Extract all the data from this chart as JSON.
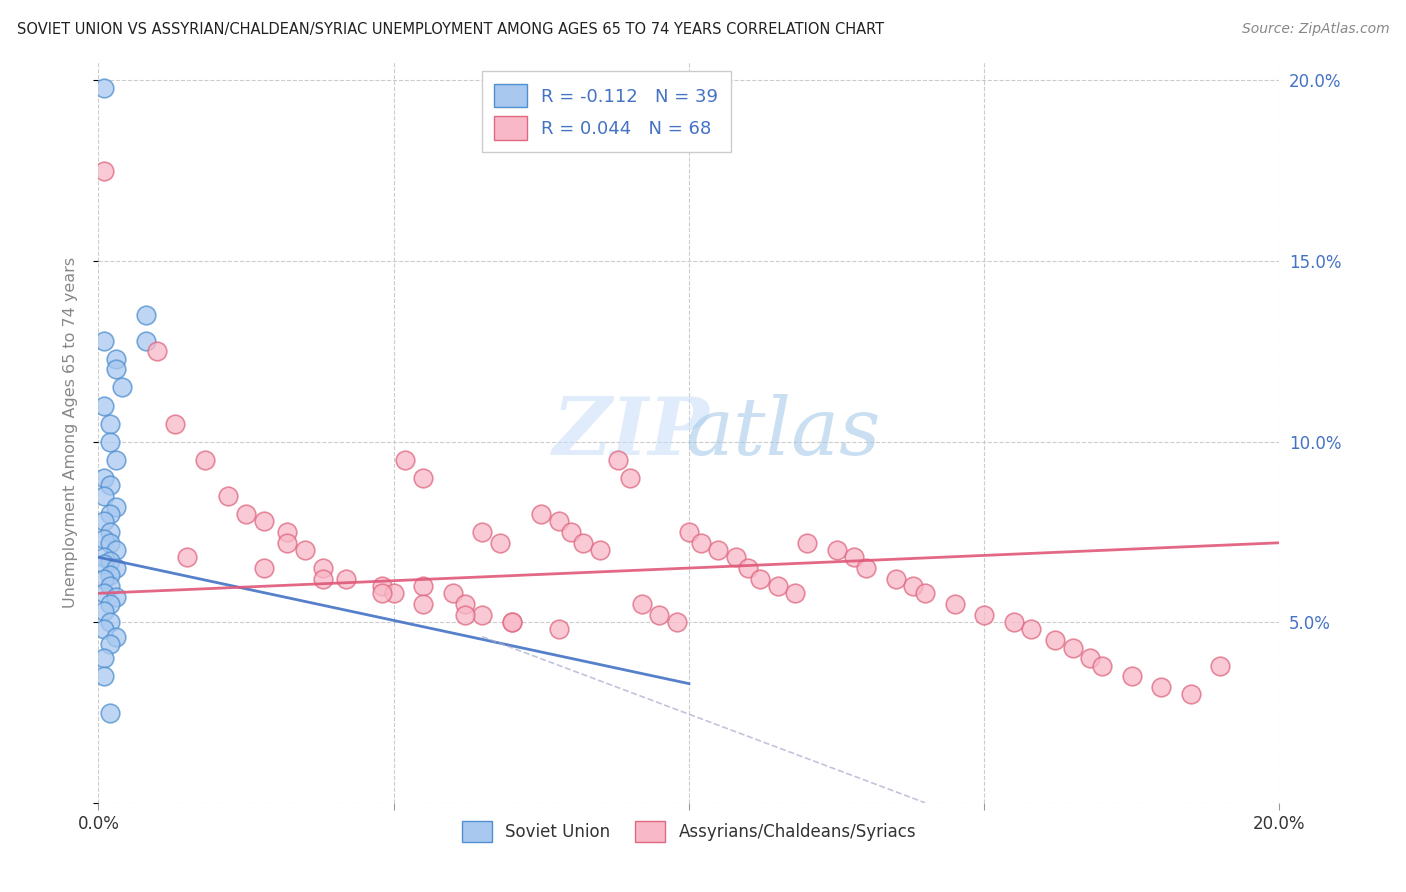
{
  "title": "SOVIET UNION VS ASSYRIAN/CHALDEAN/SYRIAC UNEMPLOYMENT AMONG AGES 65 TO 74 YEARS CORRELATION CHART",
  "source": "Source: ZipAtlas.com",
  "ylabel": "Unemployment Among Ages 65 to 74 years",
  "xlim": [
    0.0,
    0.2
  ],
  "ylim": [
    0.0,
    0.205
  ],
  "yticks": [
    0.0,
    0.05,
    0.1,
    0.15,
    0.2
  ],
  "ytick_labels": [
    "",
    "5.0%",
    "10.0%",
    "15.0%",
    "20.0%"
  ],
  "xticks": [
    0.0,
    0.05,
    0.1,
    0.15,
    0.2
  ],
  "xtick_labels": [
    "0.0%",
    "",
    "",
    "",
    "20.0%"
  ],
  "watermark_zip": "ZIP",
  "watermark_atlas": "atlas",
  "legend_line1": "R = -0.112   N = 39",
  "legend_line2": "R = 0.044   N = 68",
  "legend_label1": "Soviet Union",
  "legend_label2": "Assyrians/Chaldeans/Syriacs",
  "color_blue_fill": "#A8C8F0",
  "color_blue_edge": "#5090D0",
  "color_pink_fill": "#F8B8C8",
  "color_pink_edge": "#E06880",
  "color_blue_text": "#4472C4",
  "color_pink_text": "#E05878",
  "trendline_blue": [
    0.0,
    0.068,
    0.1,
    0.033
  ],
  "trendline_blue_dashed": [
    0.065,
    0.046,
    0.14,
    0.0
  ],
  "trendline_pink": [
    0.0,
    0.058,
    0.2,
    0.072
  ],
  "soviet_x": [
    0.001,
    0.008,
    0.008,
    0.001,
    0.003,
    0.003,
    0.004,
    0.001,
    0.002,
    0.002,
    0.003,
    0.001,
    0.002,
    0.001,
    0.003,
    0.002,
    0.001,
    0.002,
    0.001,
    0.002,
    0.003,
    0.001,
    0.002,
    0.001,
    0.003,
    0.002,
    0.001,
    0.002,
    0.001,
    0.003,
    0.002,
    0.001,
    0.002,
    0.001,
    0.003,
    0.002,
    0.001,
    0.001,
    0.002
  ],
  "soviet_y": [
    0.198,
    0.135,
    0.128,
    0.128,
    0.123,
    0.12,
    0.115,
    0.11,
    0.105,
    0.1,
    0.095,
    0.09,
    0.088,
    0.085,
    0.082,
    0.08,
    0.078,
    0.075,
    0.073,
    0.072,
    0.07,
    0.068,
    0.067,
    0.066,
    0.065,
    0.063,
    0.062,
    0.06,
    0.058,
    0.057,
    0.055,
    0.053,
    0.05,
    0.048,
    0.046,
    0.044,
    0.04,
    0.035,
    0.025
  ],
  "assyrian_x": [
    0.001,
    0.01,
    0.013,
    0.018,
    0.022,
    0.025,
    0.028,
    0.032,
    0.032,
    0.035,
    0.038,
    0.042,
    0.048,
    0.05,
    0.052,
    0.055,
    0.055,
    0.06,
    0.062,
    0.065,
    0.065,
    0.068,
    0.07,
    0.075,
    0.078,
    0.08,
    0.082,
    0.085,
    0.088,
    0.09,
    0.092,
    0.095,
    0.098,
    0.1,
    0.102,
    0.105,
    0.108,
    0.11,
    0.112,
    0.115,
    0.118,
    0.12,
    0.125,
    0.128,
    0.13,
    0.135,
    0.138,
    0.14,
    0.145,
    0.15,
    0.155,
    0.158,
    0.162,
    0.165,
    0.168,
    0.17,
    0.175,
    0.18,
    0.185,
    0.19,
    0.015,
    0.028,
    0.038,
    0.048,
    0.055,
    0.062,
    0.07,
    0.078
  ],
  "assyrian_y": [
    0.175,
    0.125,
    0.105,
    0.095,
    0.085,
    0.08,
    0.078,
    0.075,
    0.072,
    0.07,
    0.065,
    0.062,
    0.06,
    0.058,
    0.095,
    0.09,
    0.06,
    0.058,
    0.055,
    0.052,
    0.075,
    0.072,
    0.05,
    0.08,
    0.078,
    0.075,
    0.072,
    0.07,
    0.095,
    0.09,
    0.055,
    0.052,
    0.05,
    0.075,
    0.072,
    0.07,
    0.068,
    0.065,
    0.062,
    0.06,
    0.058,
    0.072,
    0.07,
    0.068,
    0.065,
    0.062,
    0.06,
    0.058,
    0.055,
    0.052,
    0.05,
    0.048,
    0.045,
    0.043,
    0.04,
    0.038,
    0.035,
    0.032,
    0.03,
    0.038,
    0.068,
    0.065,
    0.062,
    0.058,
    0.055,
    0.052,
    0.05,
    0.048
  ]
}
